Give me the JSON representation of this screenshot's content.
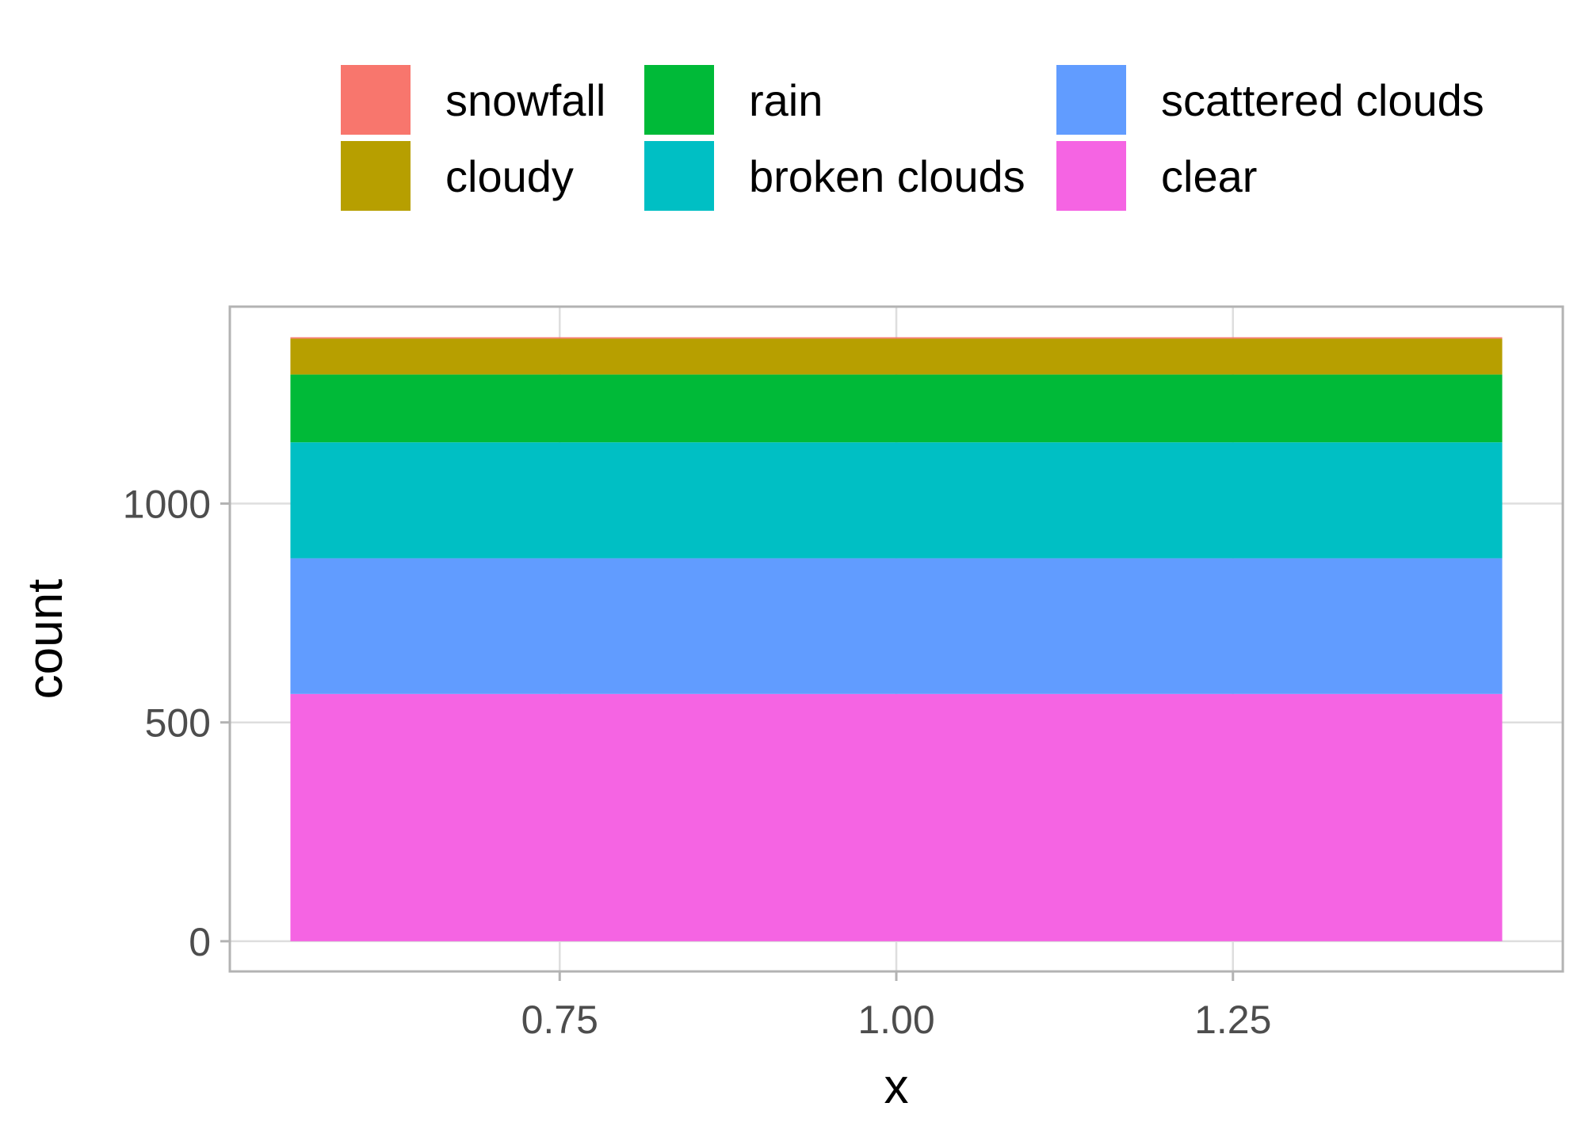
{
  "chart_data": {
    "type": "bar",
    "stacked": true,
    "xlabel": "x",
    "ylabel": "count",
    "x_tick_labels": [
      "0.75",
      "1.00",
      "1.25"
    ],
    "x_ticks": [
      0.75,
      1.0,
      1.25
    ],
    "xlim": [
      0.505,
      1.495
    ],
    "bar_x": 1.0,
    "bar_width": 0.9,
    "y_tick_labels": [
      "0",
      "500",
      "1000"
    ],
    "y_ticks": [
      0,
      500,
      1000
    ],
    "ylim": [
      -69,
      1450
    ],
    "grid": true,
    "legend_position": "top",
    "series": [
      {
        "name": "snowfall",
        "value": 3,
        "color": "#F8766D"
      },
      {
        "name": "cloudy",
        "value": 82,
        "color": "#B79F00"
      },
      {
        "name": "rain",
        "value": 155,
        "color": "#00BA38"
      },
      {
        "name": "broken clouds",
        "value": 265,
        "color": "#00BFC4"
      },
      {
        "name": "scattered clouds",
        "value": 310,
        "color": "#619CFF"
      },
      {
        "name": "clear",
        "value": 565,
        "color": "#F564E3"
      }
    ],
    "stack_order_bottom_to_top": [
      "clear",
      "scattered clouds",
      "broken clouds",
      "rain",
      "cloudy",
      "snowfall"
    ]
  },
  "colors": {
    "panel_border": "#b3b3b3",
    "grid": "#dedede",
    "tick_text": "#4d4d4d"
  }
}
